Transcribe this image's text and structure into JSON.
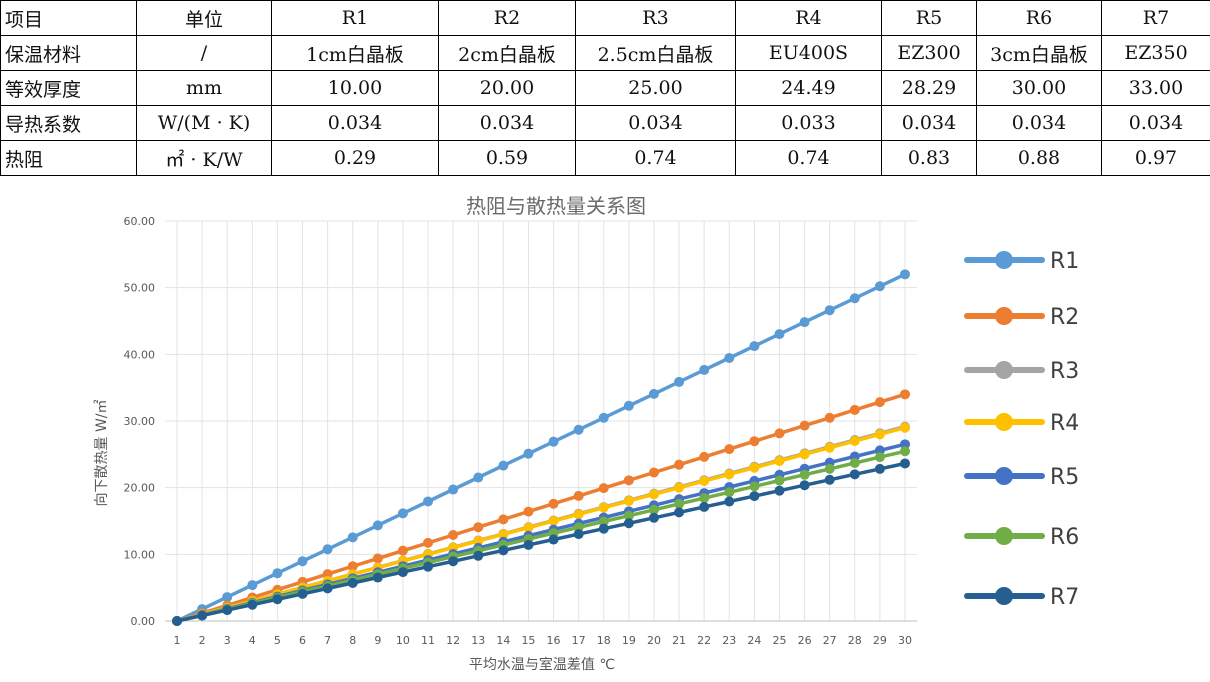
{
  "table": {
    "rows": [
      [
        "项目",
        "单位",
        "R1",
        "R2",
        "R3",
        "R4",
        "R5",
        "R6",
        "R7"
      ],
      [
        "保温材料",
        "/",
        "1cm白晶板",
        "2cm白晶板",
        "2.5cm白晶板",
        "EU400S",
        "EZ300",
        "3cm白晶板",
        "EZ350"
      ],
      [
        "等效厚度",
        "mm",
        "10.00",
        "20.00",
        "25.00",
        "24.49",
        "28.29",
        "30.00",
        "33.00"
      ],
      [
        "导热系数",
        "W/(M · K)",
        "0.034",
        "0.034",
        "0.034",
        "0.033",
        "0.034",
        "0.034",
        "0.034"
      ],
      [
        "热阻",
        "㎡ · K/W",
        "0.29",
        "0.59",
        "0.74",
        "0.74",
        "0.83",
        "0.88",
        "0.97"
      ]
    ]
  },
  "chart_data": {
    "type": "line",
    "title": "热阻与散热量关系图",
    "xlabel": "平均水温与室温差值 ℃",
    "ylabel": "向下散热量 W/㎡",
    "xlim": [
      1,
      30
    ],
    "ylim": [
      0,
      60
    ],
    "y_ticks": [
      "0.00",
      "10.00",
      "20.00",
      "30.00",
      "40.00",
      "50.00",
      "60.00"
    ],
    "grid": true,
    "legend": "right",
    "x": [
      1,
      2,
      3,
      4,
      5,
      6,
      7,
      8,
      9,
      10,
      11,
      12,
      13,
      14,
      15,
      16,
      17,
      18,
      19,
      20,
      21,
      22,
      23,
      24,
      25,
      26,
      27,
      28,
      29,
      30
    ],
    "series": [
      {
        "name": "R1",
        "color": "#5b9bd5",
        "values": [
          0,
          1.79,
          3.59,
          5.38,
          7.17,
          8.97,
          10.76,
          12.55,
          14.34,
          16.14,
          17.93,
          19.72,
          21.52,
          23.31,
          25.1,
          26.9,
          28.69,
          30.48,
          32.28,
          34.07,
          35.86,
          37.66,
          39.45,
          41.24,
          43.03,
          44.83,
          46.62,
          48.41,
          50.21,
          52.0
        ]
      },
      {
        "name": "R2",
        "color": "#ed7d31",
        "values": [
          0,
          1.17,
          2.34,
          3.52,
          4.69,
          5.86,
          7.03,
          8.21,
          9.38,
          10.55,
          11.72,
          12.9,
          14.07,
          15.24,
          16.41,
          17.59,
          18.76,
          19.93,
          21.1,
          22.28,
          23.45,
          24.62,
          25.79,
          26.97,
          28.14,
          29.31,
          30.48,
          31.66,
          32.83,
          34.0
        ]
      },
      {
        "name": "R3",
        "color": "#a5a5a5",
        "values": [
          0,
          1.01,
          2.01,
          3.02,
          4.02,
          5.03,
          6.03,
          7.04,
          8.04,
          9.05,
          10.06,
          11.06,
          12.07,
          13.07,
          14.08,
          15.08,
          16.09,
          17.09,
          18.1,
          19.11,
          20.11,
          21.12,
          22.12,
          23.13,
          24.13,
          25.14,
          26.14,
          27.15,
          28.16,
          29.16
        ]
      },
      {
        "name": "R4",
        "color": "#ffc000",
        "values": [
          0,
          1.0,
          2.0,
          3.0,
          4.0,
          5.0,
          6.0,
          7.0,
          8.0,
          9.0,
          10.0,
          11.0,
          12.0,
          13.0,
          14.0,
          15.0,
          16.0,
          17.0,
          18.0,
          19.0,
          20.0,
          21.0,
          22.0,
          23.0,
          24.0,
          25.0,
          26.0,
          27.0,
          28.0,
          29.0
        ]
      },
      {
        "name": "R5",
        "color": "#4472c4",
        "values": [
          0,
          0.91,
          1.83,
          2.74,
          3.66,
          4.57,
          5.48,
          6.4,
          7.31,
          8.22,
          9.14,
          10.05,
          10.97,
          11.88,
          12.79,
          13.71,
          14.62,
          15.53,
          16.45,
          17.36,
          18.28,
          19.19,
          20.1,
          21.02,
          21.93,
          22.84,
          23.76,
          24.67,
          25.59,
          26.5
        ]
      },
      {
        "name": "R6",
        "color": "#70ad47",
        "values": [
          0,
          0.88,
          1.76,
          2.63,
          3.51,
          4.39,
          5.27,
          6.14,
          7.02,
          7.9,
          8.78,
          9.66,
          10.53,
          11.41,
          12.29,
          13.17,
          14.04,
          14.92,
          15.8,
          16.68,
          17.56,
          18.43,
          19.31,
          20.19,
          21.07,
          21.94,
          22.82,
          23.7,
          24.58,
          25.46
        ]
      },
      {
        "name": "R7",
        "color": "#255e91",
        "values": [
          0,
          0.81,
          1.63,
          2.44,
          3.26,
          4.07,
          4.89,
          5.7,
          6.52,
          7.33,
          8.15,
          8.96,
          9.78,
          10.59,
          11.41,
          12.22,
          13.03,
          13.85,
          14.66,
          15.48,
          16.29,
          17.11,
          17.92,
          18.74,
          19.55,
          20.37,
          21.18,
          22.0,
          22.81,
          23.63
        ]
      }
    ]
  }
}
